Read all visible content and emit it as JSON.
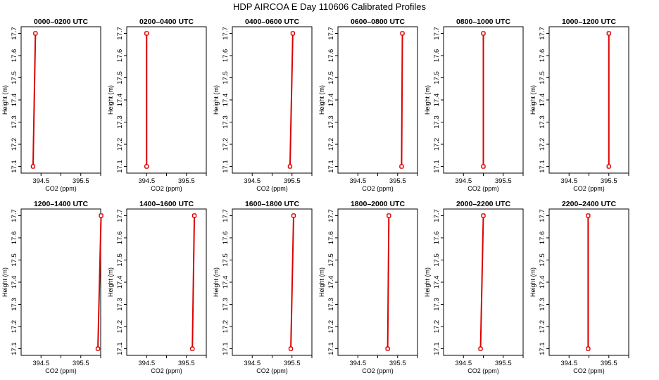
{
  "figure": {
    "title": "HDP AIRCOA E  Day 110606  Calibrated Profiles",
    "line_color": "#dd0000"
  },
  "chart_data": [
    {
      "type": "line",
      "title": "0000–0200 UTC",
      "xlabel": "CO2 (ppm)",
      "ylabel": "Height (m)",
      "xlim": [
        394.0,
        396.0
      ],
      "ylim": [
        17.07,
        17.73
      ],
      "xticks": [
        394.5,
        395.0,
        395.5,
        396.0
      ],
      "xtick_labels": [
        "394.5",
        "",
        "395.5",
        ""
      ],
      "yticks": [
        17.1,
        17.2,
        17.3,
        17.4,
        17.5,
        17.6,
        17.7
      ],
      "series": [
        {
          "x": [
            394.3,
            394.36
          ],
          "y": [
            17.1,
            17.7
          ]
        }
      ]
    },
    {
      "type": "line",
      "title": "0200–0400 UTC",
      "xlabel": "CO2 (ppm)",
      "ylabel": "Height (m)",
      "xlim": [
        394.0,
        396.0
      ],
      "ylim": [
        17.07,
        17.73
      ],
      "xticks": [
        394.5,
        395.0,
        395.5,
        396.0
      ],
      "xtick_labels": [
        "394.5",
        "",
        "395.5",
        ""
      ],
      "yticks": [
        17.1,
        17.2,
        17.3,
        17.4,
        17.5,
        17.6,
        17.7
      ],
      "series": [
        {
          "x": [
            394.5,
            394.5
          ],
          "y": [
            17.1,
            17.7
          ]
        }
      ]
    },
    {
      "type": "line",
      "title": "0400–0600 UTC",
      "xlabel": "CO2 (ppm)",
      "ylabel": "Height (m)",
      "xlim": [
        394.0,
        396.0
      ],
      "ylim": [
        17.07,
        17.73
      ],
      "xticks": [
        394.5,
        395.0,
        395.5,
        396.0
      ],
      "xtick_labels": [
        "394.5",
        "",
        "395.5",
        ""
      ],
      "yticks": [
        17.1,
        17.2,
        17.3,
        17.4,
        17.5,
        17.6,
        17.7
      ],
      "series": [
        {
          "x": [
            395.45,
            395.52
          ],
          "y": [
            17.1,
            17.7
          ]
        }
      ]
    },
    {
      "type": "line",
      "title": "0600–0800 UTC",
      "xlabel": "CO2 (ppm)",
      "ylabel": "Height (m)",
      "xlim": [
        394.0,
        396.0
      ],
      "ylim": [
        17.07,
        17.73
      ],
      "xticks": [
        394.5,
        395.0,
        395.5,
        396.0
      ],
      "xtick_labels": [
        "394.5",
        "",
        "395.5",
        ""
      ],
      "yticks": [
        17.1,
        17.2,
        17.3,
        17.4,
        17.5,
        17.6,
        17.7
      ],
      "series": [
        {
          "x": [
            395.6,
            395.62
          ],
          "y": [
            17.1,
            17.7
          ]
        }
      ]
    },
    {
      "type": "line",
      "title": "0800–1000 UTC",
      "xlabel": "CO2 (ppm)",
      "ylabel": "Height (m)",
      "xlim": [
        394.0,
        396.0
      ],
      "ylim": [
        17.07,
        17.73
      ],
      "xticks": [
        394.5,
        395.0,
        395.5,
        396.0
      ],
      "xtick_labels": [
        "394.5",
        "",
        "395.5",
        ""
      ],
      "yticks": [
        17.1,
        17.2,
        17.3,
        17.4,
        17.5,
        17.6,
        17.7
      ],
      "series": [
        {
          "x": [
            395.0,
            395.0
          ],
          "y": [
            17.1,
            17.7
          ]
        }
      ]
    },
    {
      "type": "line",
      "title": "1000–1200 UTC",
      "xlabel": "CO2 (ppm)",
      "ylabel": "Height (m)",
      "xlim": [
        394.0,
        396.0
      ],
      "ylim": [
        17.07,
        17.73
      ],
      "xticks": [
        394.5,
        395.0,
        395.5,
        396.0
      ],
      "xtick_labels": [
        "394.5",
        "",
        "395.5",
        ""
      ],
      "yticks": [
        17.1,
        17.2,
        17.3,
        17.4,
        17.5,
        17.6,
        17.7
      ],
      "series": [
        {
          "x": [
            395.5,
            395.5
          ],
          "y": [
            17.1,
            17.7
          ]
        }
      ]
    },
    {
      "type": "line",
      "title": "1200–1400 UTC",
      "xlabel": "CO2 (ppm)",
      "ylabel": "Height (m)",
      "xlim": [
        394.0,
        396.0
      ],
      "ylim": [
        17.07,
        17.73
      ],
      "xticks": [
        394.5,
        395.0,
        395.5,
        396.0
      ],
      "xtick_labels": [
        "394.5",
        "",
        "395.5",
        ""
      ],
      "yticks": [
        17.1,
        17.2,
        17.3,
        17.4,
        17.5,
        17.6,
        17.7
      ],
      "series": [
        {
          "x": [
            395.93,
            396.01
          ],
          "y": [
            17.1,
            17.7
          ]
        }
      ]
    },
    {
      "type": "line",
      "title": "1400–1600 UTC",
      "xlabel": "CO2 (ppm)",
      "ylabel": "Height (m)",
      "xlim": [
        394.0,
        396.0
      ],
      "ylim": [
        17.07,
        17.73
      ],
      "xticks": [
        394.5,
        395.0,
        395.5,
        396.0
      ],
      "xtick_labels": [
        "394.5",
        "",
        "395.5",
        ""
      ],
      "yticks": [
        17.1,
        17.2,
        17.3,
        17.4,
        17.5,
        17.6,
        17.7
      ],
      "series": [
        {
          "x": [
            395.65,
            395.7
          ],
          "y": [
            17.1,
            17.7
          ]
        }
      ]
    },
    {
      "type": "line",
      "title": "1600–1800 UTC",
      "xlabel": "CO2 (ppm)",
      "ylabel": "Height (m)",
      "xlim": [
        394.0,
        396.0
      ],
      "ylim": [
        17.07,
        17.73
      ],
      "xticks": [
        394.5,
        395.0,
        395.5,
        396.0
      ],
      "xtick_labels": [
        "394.5",
        "",
        "395.5",
        ""
      ],
      "yticks": [
        17.1,
        17.2,
        17.3,
        17.4,
        17.5,
        17.6,
        17.7
      ],
      "series": [
        {
          "x": [
            395.47,
            395.54
          ],
          "y": [
            17.1,
            17.7
          ]
        }
      ]
    },
    {
      "type": "line",
      "title": "1800–2000 UTC",
      "xlabel": "CO2 (ppm)",
      "ylabel": "Height (m)",
      "xlim": [
        394.0,
        396.0
      ],
      "ylim": [
        17.07,
        17.73
      ],
      "xticks": [
        394.5,
        395.0,
        395.5,
        396.0
      ],
      "xtick_labels": [
        "394.5",
        "",
        "395.5",
        ""
      ],
      "yticks": [
        17.1,
        17.2,
        17.3,
        17.4,
        17.5,
        17.6,
        17.7
      ],
      "series": [
        {
          "x": [
            395.25,
            395.28
          ],
          "y": [
            17.1,
            17.7
          ]
        }
      ]
    },
    {
      "type": "line",
      "title": "2000–2200 UTC",
      "xlabel": "CO2 (ppm)",
      "ylabel": "Height (m)",
      "xlim": [
        394.0,
        396.0
      ],
      "ylim": [
        17.07,
        17.73
      ],
      "xticks": [
        394.5,
        395.0,
        395.5,
        396.0
      ],
      "xtick_labels": [
        "394.5",
        "",
        "395.5",
        ""
      ],
      "yticks": [
        17.1,
        17.2,
        17.3,
        17.4,
        17.5,
        17.6,
        17.7
      ],
      "series": [
        {
          "x": [
            394.93,
            395.0
          ],
          "y": [
            17.1,
            17.7
          ]
        }
      ]
    },
    {
      "type": "line",
      "title": "2200–2400 UTC",
      "xlabel": "CO2 (ppm)",
      "ylabel": "Height (m)",
      "xlim": [
        394.0,
        396.0
      ],
      "ylim": [
        17.07,
        17.73
      ],
      "xticks": [
        394.5,
        395.0,
        395.5,
        396.0
      ],
      "xtick_labels": [
        "394.5",
        "",
        "395.5",
        ""
      ],
      "yticks": [
        17.1,
        17.2,
        17.3,
        17.4,
        17.5,
        17.6,
        17.7
      ],
      "series": [
        {
          "x": [
            394.98,
            394.98
          ],
          "y": [
            17.1,
            17.7
          ]
        }
      ]
    }
  ]
}
